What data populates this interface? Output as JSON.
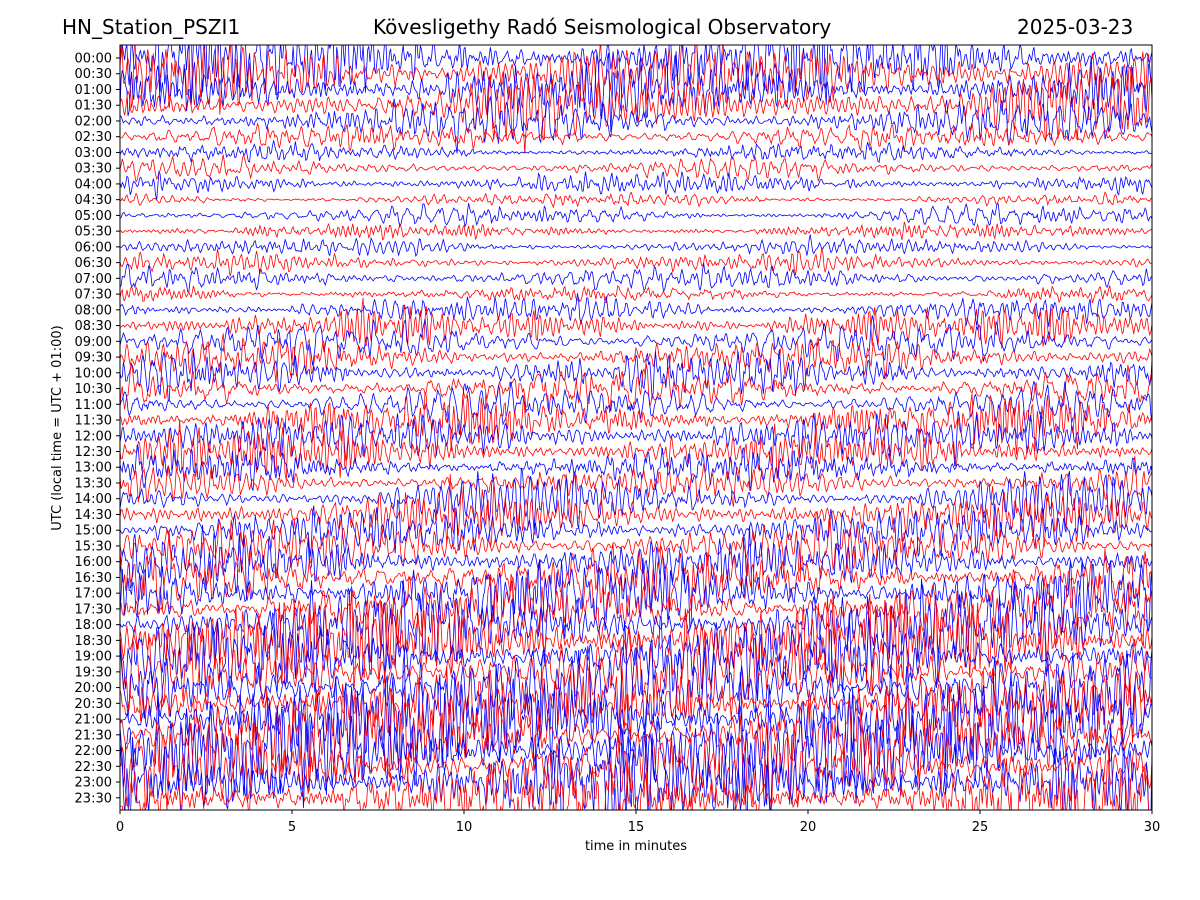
{
  "header": {
    "station": "HN_Station_PSZI1",
    "observatory": "Kövesligethy Radó Seismological Observatory",
    "date": "2025-03-23"
  },
  "chart_data": {
    "type": "line",
    "subtype": "helicorder",
    "xlabel": "time in minutes",
    "ylabel": "UTC (local time = UTC + 01:00)",
    "xlim": [
      0,
      30
    ],
    "xticks": [
      0,
      5,
      10,
      15,
      20,
      25,
      30
    ],
    "yticks": [
      "00:00",
      "00:30",
      "01:00",
      "01:30",
      "02:00",
      "02:30",
      "03:00",
      "03:30",
      "04:00",
      "04:30",
      "05:00",
      "05:30",
      "06:00",
      "06:30",
      "07:00",
      "07:30",
      "08:00",
      "08:30",
      "09:00",
      "09:30",
      "10:00",
      "10:30",
      "11:00",
      "11:30",
      "12:00",
      "12:30",
      "13:00",
      "13:30",
      "14:00",
      "14:30",
      "15:00",
      "15:30",
      "16:00",
      "16:30",
      "17:00",
      "17:30",
      "18:00",
      "18:30",
      "19:00",
      "19:30",
      "20:00",
      "20:30",
      "21:00",
      "21:30",
      "22:00",
      "22:30",
      "23:00",
      "23:30"
    ],
    "trace_colors": [
      "#0000ff",
      "#ff0000"
    ],
    "relative_amplitude": [
      3.2,
      3.0,
      2.8,
      2.4,
      1.8,
      1.3,
      1.0,
      0.8,
      0.9,
      0.7,
      0.8,
      0.7,
      0.9,
      0.8,
      1.0,
      0.9,
      1.2,
      1.5,
      1.7,
      1.6,
      1.8,
      2.0,
      2.0,
      2.1,
      2.0,
      1.9,
      1.8,
      1.8,
      2.0,
      2.1,
      2.2,
      2.3,
      2.5,
      2.6,
      2.8,
      3.0,
      3.3,
      3.5,
      3.6,
      3.8,
      3.9,
      4.0,
      4.0,
      4.0,
      3.9,
      3.8,
      3.8,
      3.7
    ],
    "grid": false
  }
}
